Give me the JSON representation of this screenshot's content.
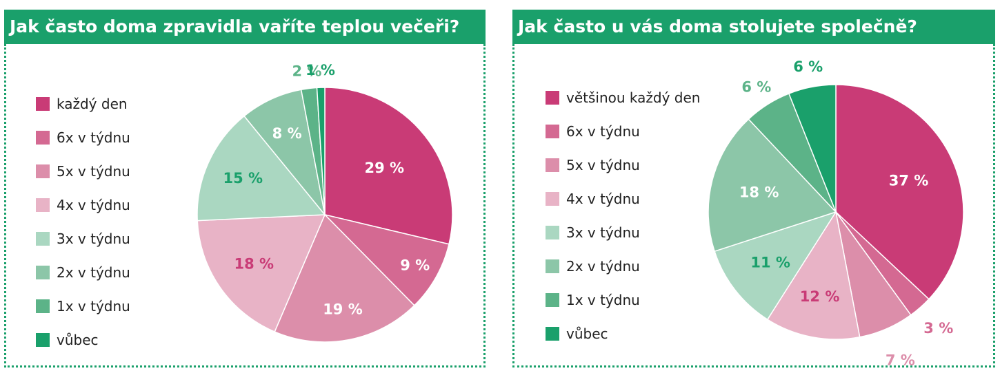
{
  "chart_data": [
    {
      "type": "pie",
      "title": "Jak často doma zpravidla vaříte teplou večeři?",
      "categories": [
        "každý den",
        "6x v týdnu",
        "5x v týdnu",
        "4x v týdnu",
        "3x v týdnu",
        "2x v týdnu",
        "1x v týdnu",
        "vůbec"
      ],
      "values": [
        29,
        9,
        19,
        18,
        15,
        8,
        2,
        1
      ],
      "labels": [
        "29 %",
        "9 %",
        "19 %",
        "18 %",
        "15 %",
        "8 %",
        "2 %",
        "1 %"
      ],
      "colors": [
        "#c93b76",
        "#d46992",
        "#dc8eaa",
        "#e8b3c6",
        "#aad7c1",
        "#8cc6a8",
        "#5cb388",
        "#1aa06b"
      ],
      "label_colors": [
        "#ffffff",
        "#ffffff",
        "#ffffff",
        "#c93b76",
        "#1aa06b",
        "#ffffff",
        "#5cb388",
        "#1aa06b"
      ],
      "legend_placement": "left"
    },
    {
      "type": "pie",
      "title": "Jak často u vás doma stolujete společně?",
      "categories": [
        "většinou každý den",
        "6x v týdnu",
        "5x v týdnu",
        "4x v týdnu",
        "3x v týdnu",
        "2x v týdnu",
        "1x v týdnu",
        "vůbec"
      ],
      "values": [
        37,
        3,
        7,
        12,
        11,
        18,
        6,
        6
      ],
      "labels": [
        "37 %",
        "3 %",
        "7 %",
        "12 %",
        "11 %",
        "18 %",
        "6 %",
        "6 %"
      ],
      "colors": [
        "#c93b76",
        "#d46992",
        "#dc8eaa",
        "#e8b3c6",
        "#aad7c1",
        "#8cc6a8",
        "#5cb388",
        "#1aa06b"
      ],
      "label_colors": [
        "#ffffff",
        "#d46992",
        "#dc8eaa",
        "#c93b76",
        "#1aa06b",
        "#ffffff",
        "#5cb388",
        "#1aa06b"
      ],
      "legend_placement": "left"
    }
  ]
}
